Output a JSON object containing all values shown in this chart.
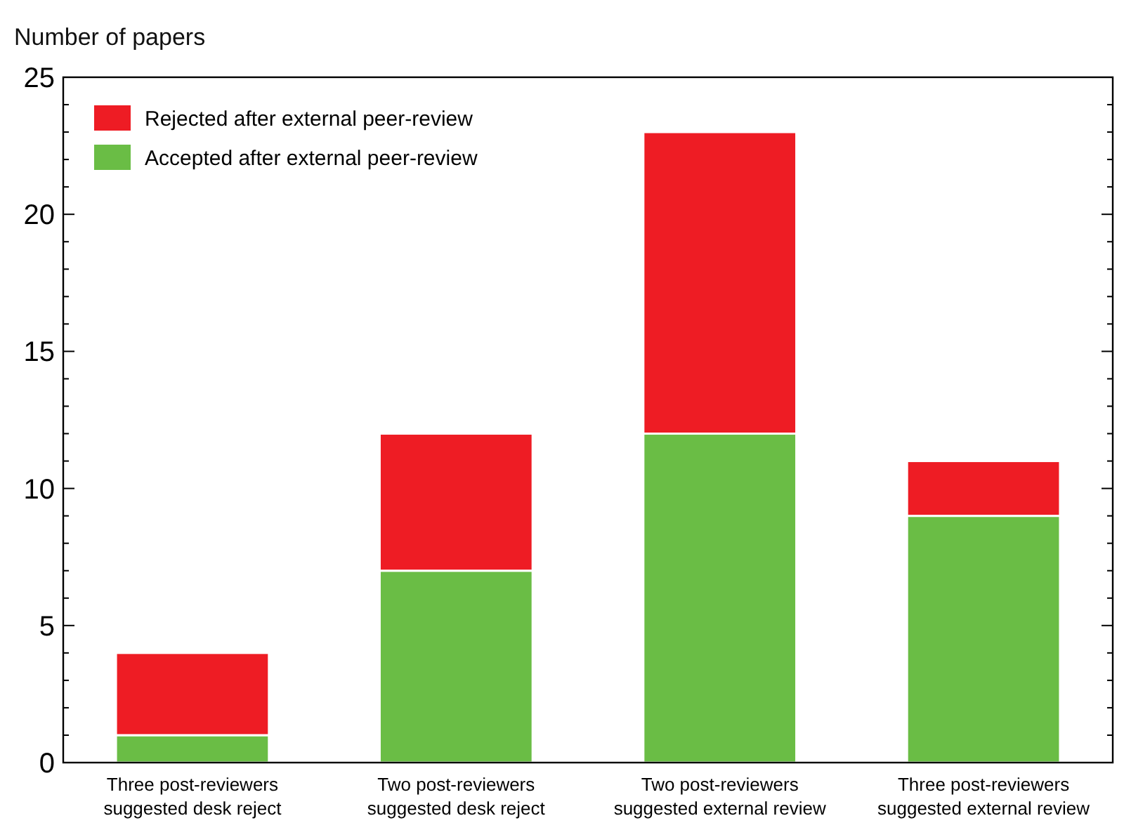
{
  "chart_data": {
    "type": "bar",
    "stacked": true,
    "ylabel": "Number of papers",
    "categories": [
      "Three post-reviewers\nsuggested desk reject",
      "Two post-reviewers\nsuggested desk reject",
      "Two post-reviewers\nsuggested external review",
      "Three post-reviewers\nsuggested external review"
    ],
    "series": [
      {
        "name": "Accepted after external peer-review",
        "color": "#6abd45",
        "values": [
          1,
          7,
          12,
          9
        ]
      },
      {
        "name": "Rejected after external peer-review",
        "color": "#ee1c24",
        "values": [
          3,
          5,
          11,
          2
        ]
      }
    ],
    "ylim": [
      0,
      25
    ],
    "yticks": [
      0,
      {
        "value": 1,
        "label": null
      },
      {
        "value": 2,
        "label": null
      },
      {
        "value": 3,
        "label": null
      },
      {
        "value": 4,
        "label": null
      },
      5,
      {
        "value": 6,
        "label": null
      },
      {
        "value": 7,
        "label": null
      },
      {
        "value": 8,
        "label": null
      },
      {
        "value": 9,
        "label": null
      },
      10,
      {
        "value": 11,
        "label": null
      },
      {
        "value": 12,
        "label": null
      },
      {
        "value": 13,
        "label": null
      },
      {
        "value": 14,
        "label": null
      },
      15,
      {
        "value": 16,
        "label": null
      },
      {
        "value": 17,
        "label": null
      },
      {
        "value": 18,
        "label": null
      },
      {
        "value": 19,
        "label": null
      },
      20,
      {
        "value": 21,
        "label": null
      },
      {
        "value": 22,
        "label": null
      },
      {
        "value": 23,
        "label": null
      },
      {
        "value": 24,
        "label": null
      },
      25
    ],
    "grid": false,
    "legend": "top left"
  }
}
